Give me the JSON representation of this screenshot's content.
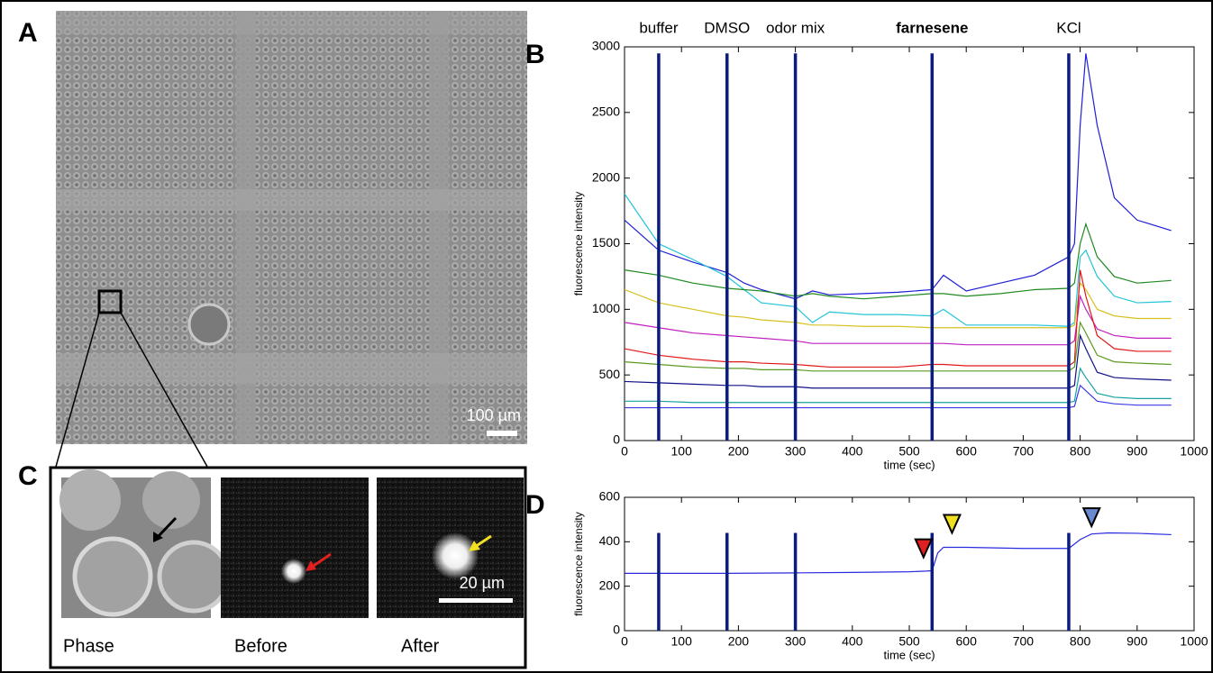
{
  "panels": {
    "A": {
      "label": "A",
      "scale_bar": "100 µm"
    },
    "C": {
      "label": "C",
      "scale_bar": "20 µm",
      "images": [
        "Phase",
        "Before",
        "After"
      ]
    }
  },
  "chart_data": [
    {
      "type": "line",
      "panel": "B",
      "ylabel": "fluorescence intensity",
      "xlabel": "time (sec)",
      "xlim": [
        0,
        1000
      ],
      "xticks": [
        0,
        100,
        200,
        300,
        400,
        500,
        600,
        700,
        800,
        900,
        1000
      ],
      "ylim": [
        0,
        3000
      ],
      "yticks": [
        0,
        500,
        1000,
        1500,
        2000,
        2500,
        3000
      ],
      "event_color": "#0b1c80",
      "event_top": 2950,
      "events": [
        {
          "x": 60,
          "label": "buffer"
        },
        {
          "x": 180,
          "label": "DMSO"
        },
        {
          "x": 300,
          "label": "odor mix"
        },
        {
          "x": 540,
          "label": "farnesene",
          "bold": true
        },
        {
          "x": 780,
          "label": "KCl"
        }
      ],
      "x": [
        0,
        60,
        120,
        180,
        210,
        240,
        300,
        330,
        360,
        420,
        480,
        540,
        560,
        600,
        660,
        720,
        780,
        790,
        800,
        810,
        830,
        860,
        900,
        960
      ],
      "series": [
        {
          "color": "#1f1fd6",
          "values": [
            1680,
            1450,
            1360,
            1280,
            1200,
            1150,
            1080,
            1140,
            1110,
            1120,
            1130,
            1150,
            1260,
            1140,
            1200,
            1260,
            1400,
            1500,
            2400,
            2950,
            2400,
            1850,
            1680,
            1600
          ]
        },
        {
          "color": "#22c4d8",
          "values": [
            1880,
            1500,
            1380,
            1250,
            1150,
            1050,
            1020,
            900,
            980,
            960,
            960,
            950,
            1000,
            880,
            880,
            880,
            870,
            900,
            1400,
            1450,
            1250,
            1100,
            1050,
            1060
          ]
        },
        {
          "color": "#1f8a1f",
          "values": [
            1300,
            1260,
            1200,
            1160,
            1150,
            1140,
            1100,
            1120,
            1100,
            1080,
            1100,
            1120,
            1120,
            1100,
            1120,
            1150,
            1160,
            1200,
            1500,
            1650,
            1400,
            1250,
            1200,
            1220
          ]
        },
        {
          "color": "#d8c020",
          "values": [
            1150,
            1050,
            1000,
            950,
            940,
            920,
            900,
            880,
            880,
            870,
            870,
            860,
            860,
            860,
            860,
            860,
            860,
            880,
            1200,
            1150,
            1000,
            950,
            930,
            930
          ]
        },
        {
          "color": "#c020c0",
          "values": [
            900,
            860,
            820,
            800,
            790,
            780,
            760,
            740,
            740,
            740,
            740,
            740,
            740,
            730,
            730,
            730,
            730,
            760,
            1100,
            1000,
            850,
            800,
            780,
            780
          ]
        },
        {
          "color": "#e01818",
          "values": [
            700,
            650,
            620,
            600,
            600,
            590,
            580,
            570,
            560,
            560,
            560,
            580,
            580,
            570,
            570,
            570,
            570,
            600,
            1300,
            1100,
            800,
            700,
            680,
            680
          ]
        },
        {
          "color": "#5a9a20",
          "values": [
            600,
            580,
            560,
            550,
            550,
            540,
            540,
            530,
            530,
            530,
            530,
            530,
            530,
            530,
            530,
            530,
            530,
            560,
            900,
            820,
            650,
            600,
            590,
            580
          ]
        },
        {
          "color": "#10108a",
          "values": [
            450,
            440,
            430,
            420,
            420,
            410,
            410,
            400,
            400,
            400,
            400,
            400,
            400,
            400,
            400,
            400,
            400,
            420,
            800,
            700,
            520,
            480,
            470,
            460
          ]
        },
        {
          "color": "#18a0a0",
          "values": [
            300,
            300,
            290,
            290,
            290,
            290,
            290,
            290,
            290,
            290,
            290,
            290,
            290,
            290,
            290,
            290,
            290,
            300,
            550,
            480,
            360,
            330,
            320,
            320
          ]
        },
        {
          "color": "#3a3ae8",
          "values": [
            250,
            250,
            250,
            250,
            250,
            250,
            250,
            250,
            250,
            250,
            250,
            250,
            250,
            250,
            250,
            250,
            250,
            260,
            420,
            380,
            300,
            280,
            270,
            270
          ]
        }
      ]
    },
    {
      "type": "line",
      "panel": "D",
      "ylabel": "fluorescence intensity",
      "xlabel": "time (sec)",
      "xlim": [
        0,
        1000
      ],
      "xticks": [
        0,
        100,
        200,
        300,
        400,
        500,
        600,
        700,
        800,
        900,
        1000
      ],
      "ylim": [
        0,
        600
      ],
      "yticks": [
        0,
        200,
        400,
        600
      ],
      "event_color": "#0b1c80",
      "event_top": 440,
      "events": [
        {
          "x": 60
        },
        {
          "x": 180
        },
        {
          "x": 300
        },
        {
          "x": 540
        },
        {
          "x": 780
        }
      ],
      "x": [
        0,
        60,
        180,
        300,
        400,
        500,
        530,
        540,
        550,
        560,
        600,
        700,
        770,
        780,
        800,
        820,
        850,
        900,
        960
      ],
      "series": [
        {
          "color": "#2a2ae0",
          "values": [
            258,
            258,
            258,
            260,
            262,
            265,
            268,
            270,
            350,
            375,
            375,
            370,
            370,
            370,
            410,
            435,
            440,
            438,
            432
          ]
        }
      ],
      "markers": [
        {
          "x": 525,
          "y": 330,
          "color": "#e02020"
        },
        {
          "x": 575,
          "y": 440,
          "color": "#f0e020"
        },
        {
          "x": 820,
          "y": 470,
          "color": "#6a8ad0"
        }
      ]
    }
  ]
}
